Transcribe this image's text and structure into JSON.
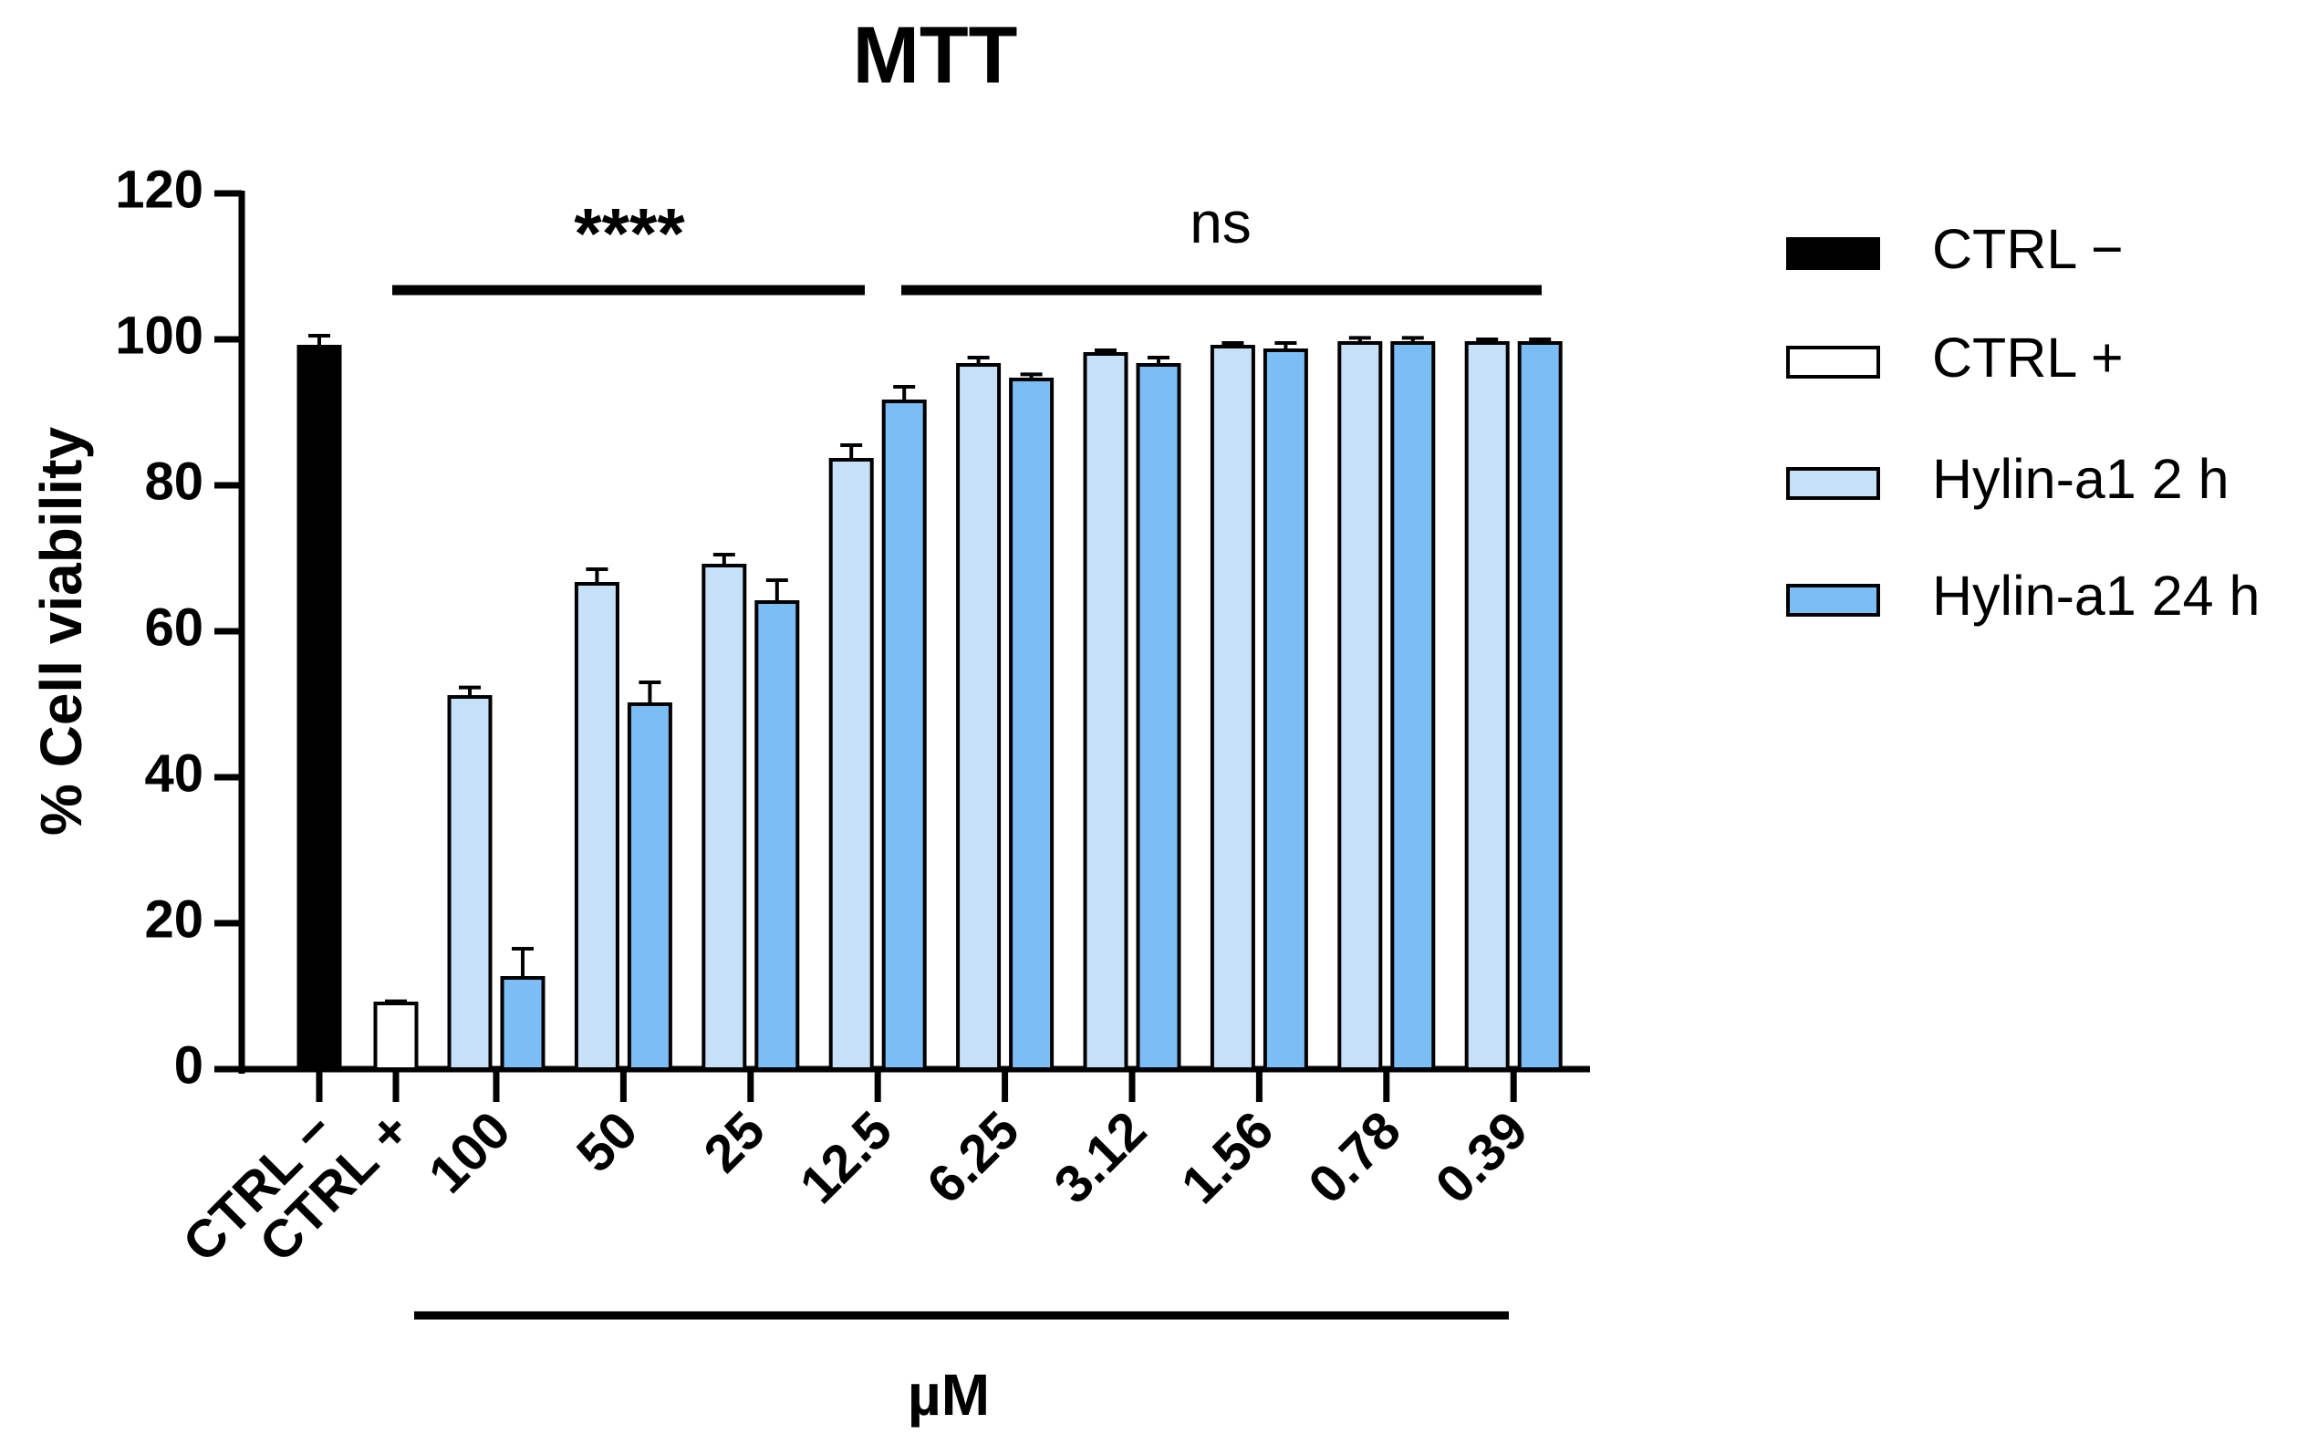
{
  "chart_data": {
    "type": "bar",
    "title": "MTT",
    "ylabel": "% Cell viability",
    "xlabel": "µM",
    "categories": [
      "CTRL −",
      "CTRL +",
      "100",
      "50",
      "25",
      "12.5",
      "6.25",
      "3.12",
      "1.56",
      "0.78",
      "0.39"
    ],
    "series": [
      {
        "name": "CTRL −",
        "color": "#000000",
        "values": [
          99,
          null,
          null,
          null,
          null,
          null,
          null,
          null,
          null,
          null,
          null
        ],
        "errors": [
          1.5,
          null,
          null,
          null,
          null,
          null,
          null,
          null,
          null,
          null,
          null
        ]
      },
      {
        "name": "CTRL +",
        "color": "#ffffff",
        "values": [
          null,
          9,
          null,
          null,
          null,
          null,
          null,
          null,
          null,
          null,
          null
        ],
        "errors": [
          null,
          0.3,
          null,
          null,
          null,
          null,
          null,
          null,
          null,
          null,
          null
        ]
      },
      {
        "name": "Hylin-a1 2 h",
        "color": "#c6e0f8",
        "values": [
          null,
          null,
          51,
          66.5,
          69,
          83.5,
          96.5,
          98,
          99,
          99.5,
          99.5
        ],
        "errors": [
          null,
          null,
          1.3,
          2,
          1.5,
          2,
          1,
          0.5,
          0.5,
          0.7,
          0.5
        ]
      },
      {
        "name": "Hylin-a1 24 h",
        "color": "#7bbdf5",
        "values": [
          null,
          null,
          12.5,
          50,
          64,
          91.5,
          94.5,
          96.5,
          98.5,
          99.5,
          99.5
        ],
        "errors": [
          null,
          null,
          4,
          3,
          3,
          2,
          0.7,
          1,
          1,
          0.7,
          0.5
        ]
      }
    ],
    "annotations": [
      {
        "text": "****"
      },
      {
        "text": "ns"
      }
    ],
    "ylim": [
      0,
      120
    ],
    "yticks": [
      0,
      20,
      40,
      60,
      80,
      100,
      120
    ],
    "grid": false,
    "legend": "right"
  }
}
